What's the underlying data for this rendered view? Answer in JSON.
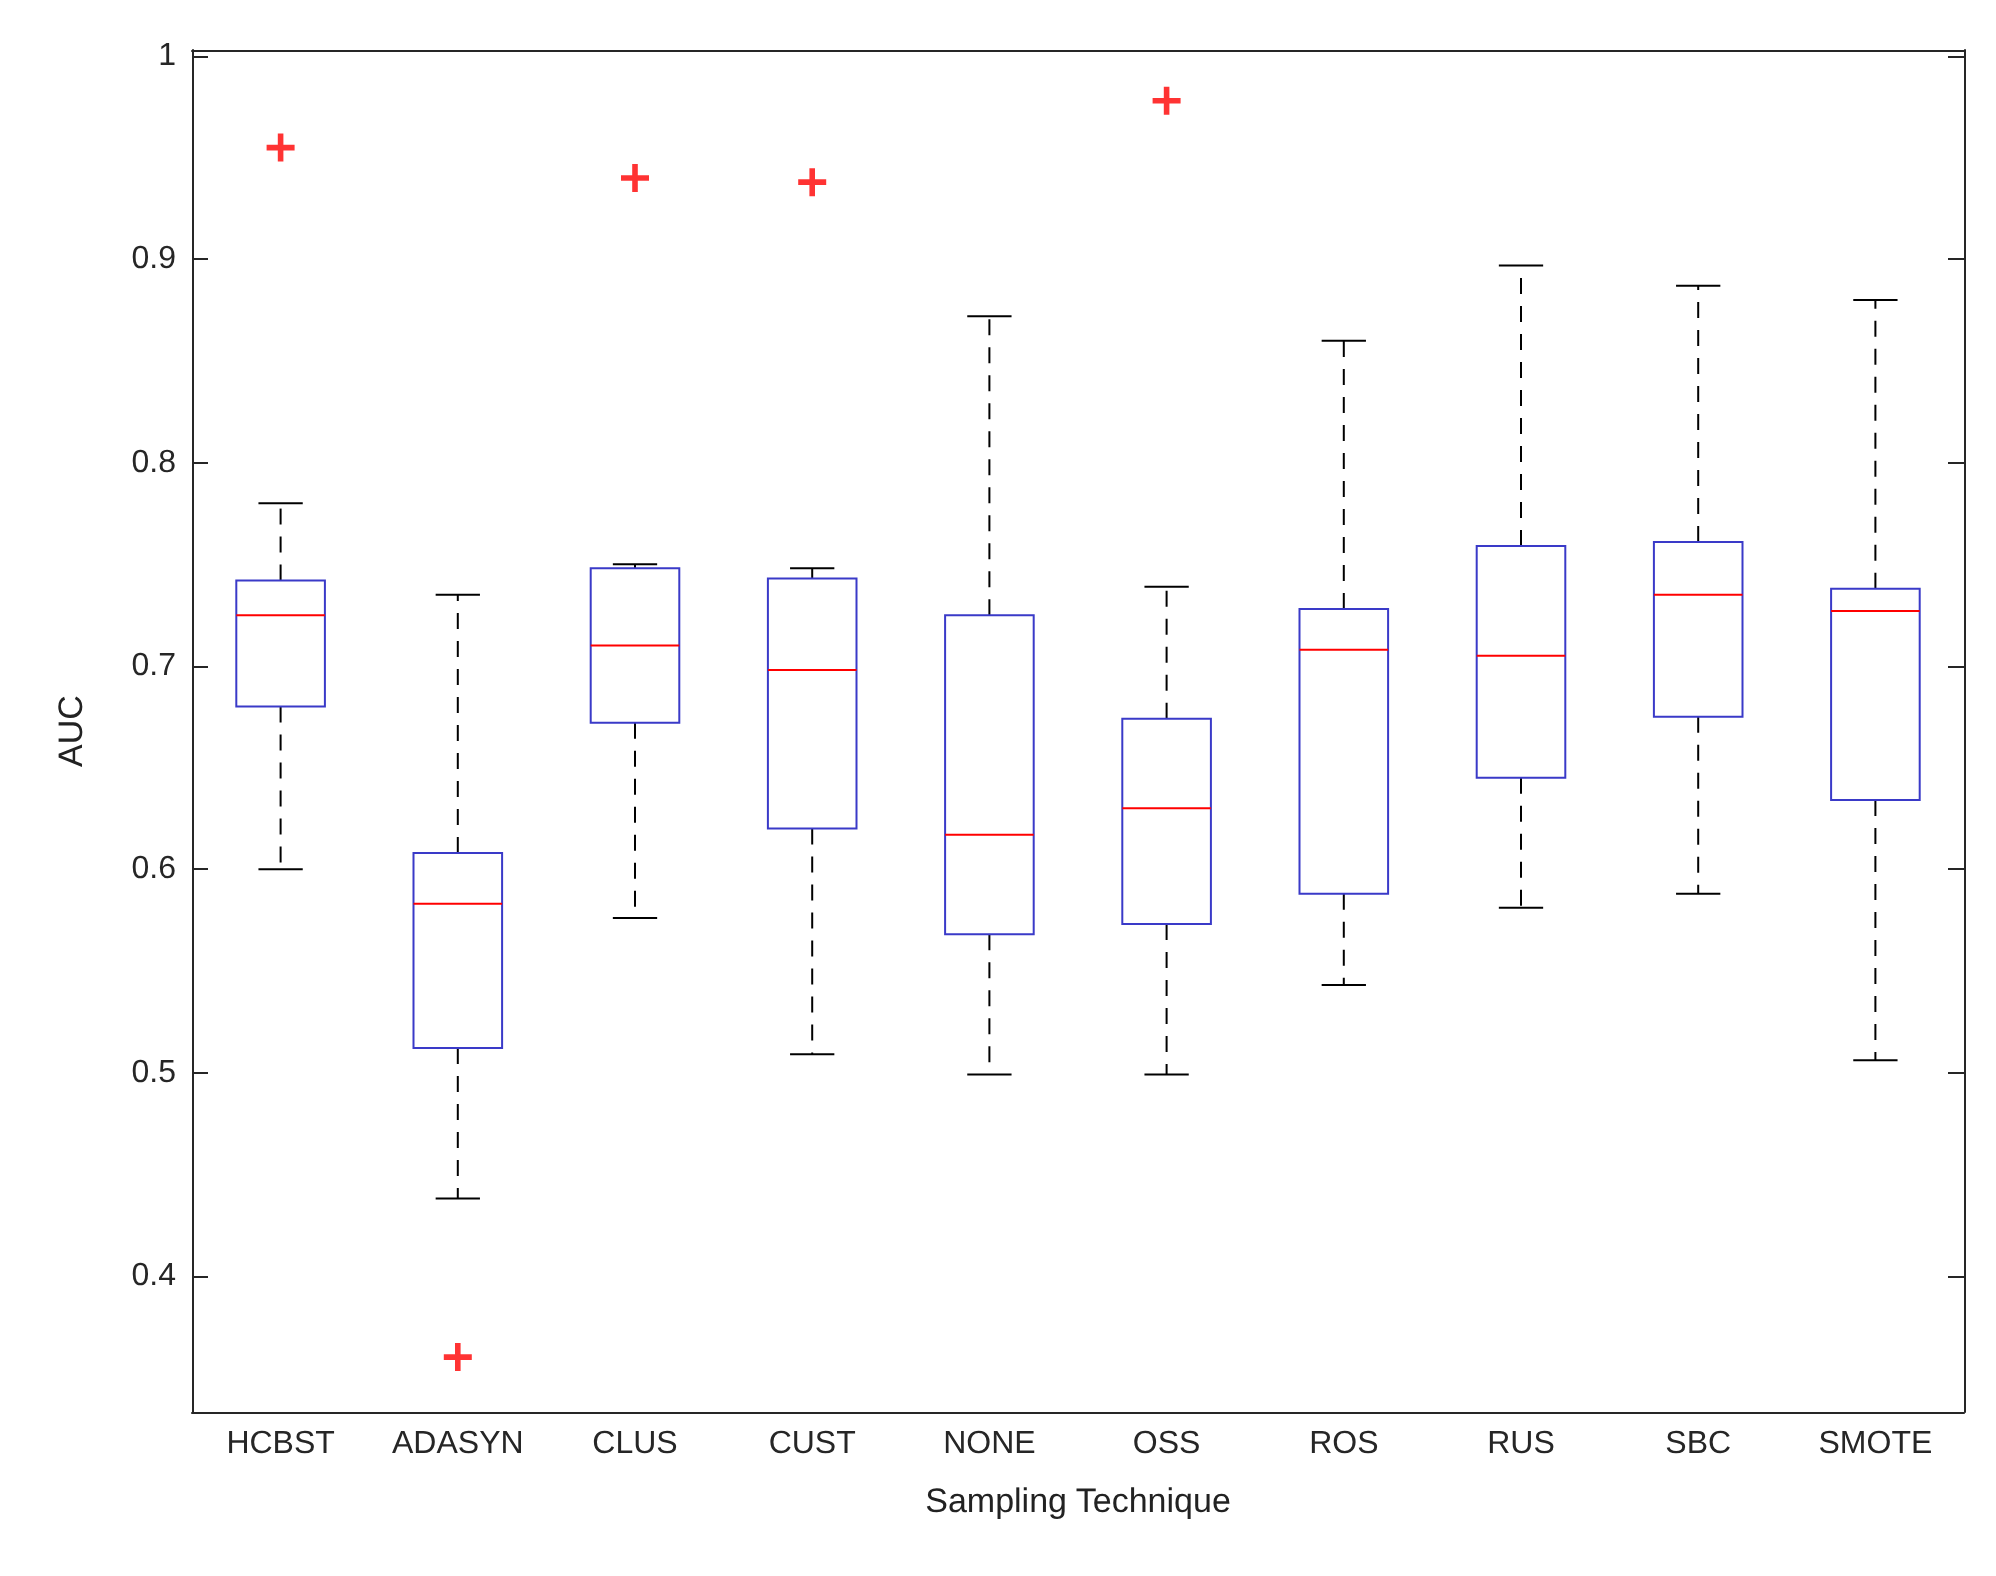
{
  "chart_data": {
    "type": "box",
    "xlabel": "Sampling Technique",
    "ylabel": "AUC",
    "categories": [
      "HCBST",
      "ADASYN",
      "CLUS",
      "CUST",
      "NONE",
      "OSS",
      "ROS",
      "RUS",
      "SBC",
      "SMOTE"
    ],
    "ylim": [
      0.333,
      1.003
    ],
    "yticks": [
      0.4,
      0.5,
      0.6,
      0.7,
      0.8,
      0.9,
      1
    ],
    "grid": false,
    "series": [
      {
        "color": "#3a3ac8",
        "boxes": [
          {
            "low": 0.6,
            "q1": 0.68,
            "median": 0.725,
            "q3": 0.742,
            "high": 0.78,
            "outliers": [
              0.955
            ]
          },
          {
            "low": 0.438,
            "q1": 0.512,
            "median": 0.583,
            "q3": 0.608,
            "high": 0.735,
            "outliers": [
              0.36
            ]
          },
          {
            "low": 0.576,
            "q1": 0.672,
            "median": 0.71,
            "q3": 0.748,
            "high": 0.75,
            "outliers": [
              0.94
            ]
          },
          {
            "low": 0.509,
            "q1": 0.62,
            "median": 0.698,
            "q3": 0.743,
            "high": 0.748,
            "outliers": [
              0.938
            ]
          },
          {
            "low": 0.499,
            "q1": 0.568,
            "median": 0.617,
            "q3": 0.725,
            "high": 0.872
          },
          {
            "low": 0.499,
            "q1": 0.573,
            "median": 0.63,
            "q3": 0.674,
            "high": 0.739,
            "outliers": [
              0.978
            ]
          },
          {
            "low": 0.543,
            "q1": 0.588,
            "median": 0.708,
            "q3": 0.728,
            "high": 0.86
          },
          {
            "low": 0.581,
            "q1": 0.645,
            "median": 0.705,
            "q3": 0.759,
            "high": 0.897
          },
          {
            "low": 0.588,
            "q1": 0.675,
            "median": 0.735,
            "q3": 0.761,
            "high": 0.887
          },
          {
            "low": 0.506,
            "q1": 0.634,
            "median": 0.727,
            "q3": 0.738,
            "high": 0.88
          }
        ]
      }
    ]
  }
}
